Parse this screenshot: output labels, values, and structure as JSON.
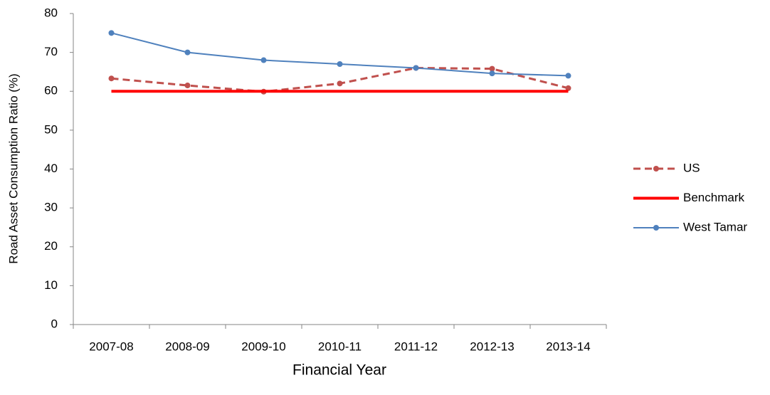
{
  "chart_data": {
    "type": "line",
    "y_label": "Road Asset Consumption Ratio (%)",
    "x_label": "Financial Year",
    "categories": [
      "2007-08",
      "2008-09",
      "2009-10",
      "2010-11",
      "2011-12",
      "2012-13",
      "2013-14"
    ],
    "series": [
      {
        "name": "US",
        "color": "#c0504d",
        "dashed": true,
        "markers": true,
        "width": 3,
        "values": [
          63.3,
          61.5,
          59.9,
          62,
          66,
          65.8,
          60.8
        ]
      },
      {
        "name": "Benchmark",
        "color": "#ff0000",
        "dashed": false,
        "markers": false,
        "width": 4,
        "values": [
          60,
          60,
          60,
          60,
          60,
          60,
          60
        ]
      },
      {
        "name": "West Tamar",
        "color": "#4f81bd",
        "dashed": false,
        "markers": true,
        "width": 2,
        "values": [
          75,
          70,
          68,
          67,
          66,
          64.6,
          64
        ]
      }
    ],
    "ylim": [
      0,
      80
    ],
    "yticks": [
      0,
      10,
      20,
      30,
      40,
      50,
      60,
      70,
      80
    ],
    "grid": false,
    "legend": "right"
  }
}
